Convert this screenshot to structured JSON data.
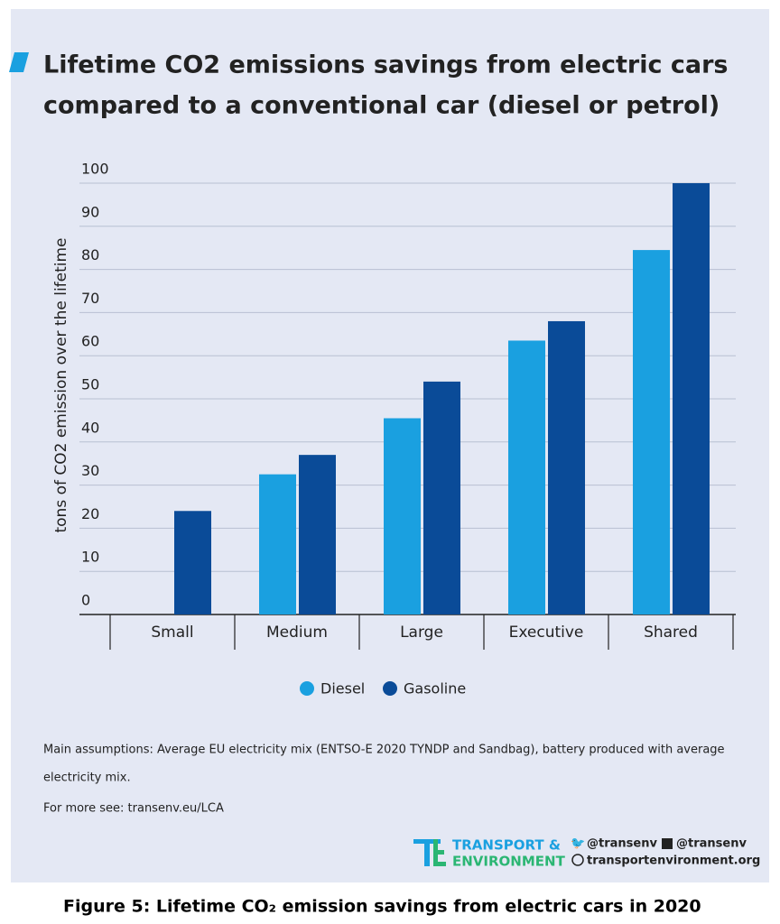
{
  "chart_data": {
    "type": "bar",
    "title": [
      "Lifetime CO2 emissions savings from electric cars",
      "compared to a conventional car (diesel or petrol)"
    ],
    "y_label": "tons of CO2 emission over the lifetime",
    "categories": [
      "Small",
      "Medium",
      "Large",
      "Executive",
      "Shared"
    ],
    "series": [
      {
        "name": "Diesel",
        "color": "#1aa0e0",
        "values": [
          null,
          32.5,
          45.5,
          63.5,
          84.5
        ]
      },
      {
        "name": "Gasoline",
        "color": "#0a4b98",
        "values": [
          24,
          37,
          54,
          68,
          100
        ]
      }
    ],
    "ylim": [
      0,
      100
    ],
    "yticks": [
      0,
      10,
      20,
      30,
      40,
      50,
      60,
      70,
      80,
      90,
      100
    ],
    "grid": true,
    "notes": [
      "Main assumptions: Average EU electricity mix (ENTSO-E 2020 TYNDP and Sandbag), battery produced with average",
      "electricity mix.",
      "For more see: transenv.eu/LCA"
    ]
  },
  "footer": {
    "logo": [
      "TRANSPORT &",
      "ENVIRONMENT"
    ],
    "twitter": "@transenv",
    "facebook": "@transenv",
    "website": "transportenvironment.org"
  },
  "caption": "Figure 5: Lifetime CO₂ emission savings from electric cars in 2020"
}
